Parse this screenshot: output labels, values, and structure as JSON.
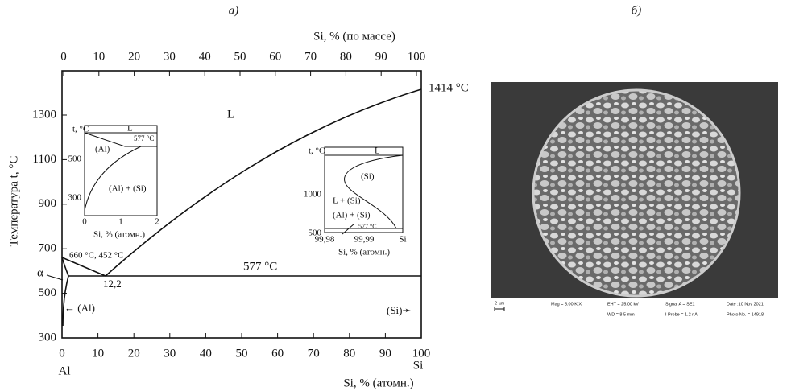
{
  "panel_a": {
    "label": "а)",
    "top_axis": {
      "title": "Si, % (по массе)",
      "ticks": [
        0,
        10,
        20,
        30,
        40,
        50,
        60,
        70,
        80,
        90,
        100
      ]
    },
    "bottom_axis": {
      "title": "Si, % (атомн.)",
      "ticks": [
        0,
        10,
        20,
        30,
        40,
        50,
        60,
        70,
        80,
        90,
        100
      ],
      "left_end": "Al",
      "right_end": "Si"
    },
    "left_axis": {
      "title": "Температура t, °C",
      "ticks": [
        1300,
        1100,
        900,
        700,
        500,
        300
      ]
    },
    "annotations": {
      "liquid": "L",
      "si_melt": "1414 °C",
      "eutectic_temp": "577 °C",
      "al_point": "660 °C, 452 °C",
      "eutectic_comp": "12,2",
      "alpha": "α",
      "al_phase": "← (Al)",
      "si_phase": "(Si)➛"
    },
    "inset_left": {
      "t_label": "t, °C",
      "liquid": "L",
      "al": "(Al)",
      "eutectic": "577 °C",
      "two_phase": "(Al) + (Si)",
      "yticks": [
        500,
        300
      ],
      "xticks": [
        0,
        1,
        2
      ],
      "x_title": "Si, % (атомн.)"
    },
    "inset_right": {
      "t_label": "t, °C",
      "liquid": "L",
      "si": "(Si)",
      "l_si": "L + (Si)",
      "two_phase": "(Al) + (Si)",
      "eutectic": "577 °C",
      "yticks": [
        1000,
        500
      ],
      "xticks": [
        "99,98",
        "99,99",
        "Si"
      ],
      "x_title": "Si, % (атомн.)"
    }
  },
  "panel_b": {
    "label": "б)",
    "scale": "2 µm",
    "mag": "Mag =  5.00 K X",
    "eht": "EHT = 25.00 kV",
    "wd": "WD =  8.5 mm",
    "signal": "Signal A = SE1",
    "probe": "I Probe =   1.2 nA",
    "date": "Date :10 Nov 2021",
    "photo": "Photo No. = 14918"
  }
}
